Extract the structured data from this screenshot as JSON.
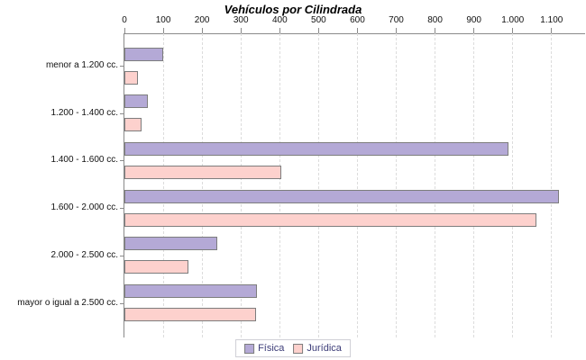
{
  "chart_data": {
    "type": "bar",
    "orientation": "horizontal",
    "title": "Vehículos por Cilindrada",
    "categories": [
      "menor a 1.200 cc.",
      "1.200 - 1.400 cc.",
      "1.400 - 1.600 cc.",
      "1.600 - 2.000 cc.",
      "2.000 - 2.500 cc.",
      "mayor o igual a 2.500 cc."
    ],
    "series": [
      {
        "name": "Física",
        "color": "#b4a9d6",
        "values": [
          100,
          60,
          990,
          1120,
          240,
          342
        ]
      },
      {
        "name": "Jurídica",
        "color": "#fdd1cd",
        "values": [
          35,
          45,
          405,
          1060,
          165,
          340
        ]
      }
    ],
    "x_ticks": [
      0,
      100,
      200,
      300,
      400,
      500,
      600,
      700,
      800,
      900,
      1000,
      1100
    ],
    "x_tick_labels": [
      "0",
      "100",
      "200",
      "300",
      "400",
      "500",
      "600",
      "700",
      "800",
      "900",
      "1.000",
      "1.100"
    ],
    "xlim": [
      0,
      1184
    ],
    "xlabel": "",
    "ylabel": "",
    "grid": "vertical-dashed",
    "axis_position": "top",
    "legend_position": "bottom-center",
    "palette": {
      "bar_border": "#7d7d7d",
      "axis_line": "#8a8a8a",
      "gridline": "#dcdcdc",
      "legend_text": "#3c3c78",
      "legend_border": "#cfcfd6",
      "title_color": "#000000",
      "background": "#ffffff"
    }
  }
}
